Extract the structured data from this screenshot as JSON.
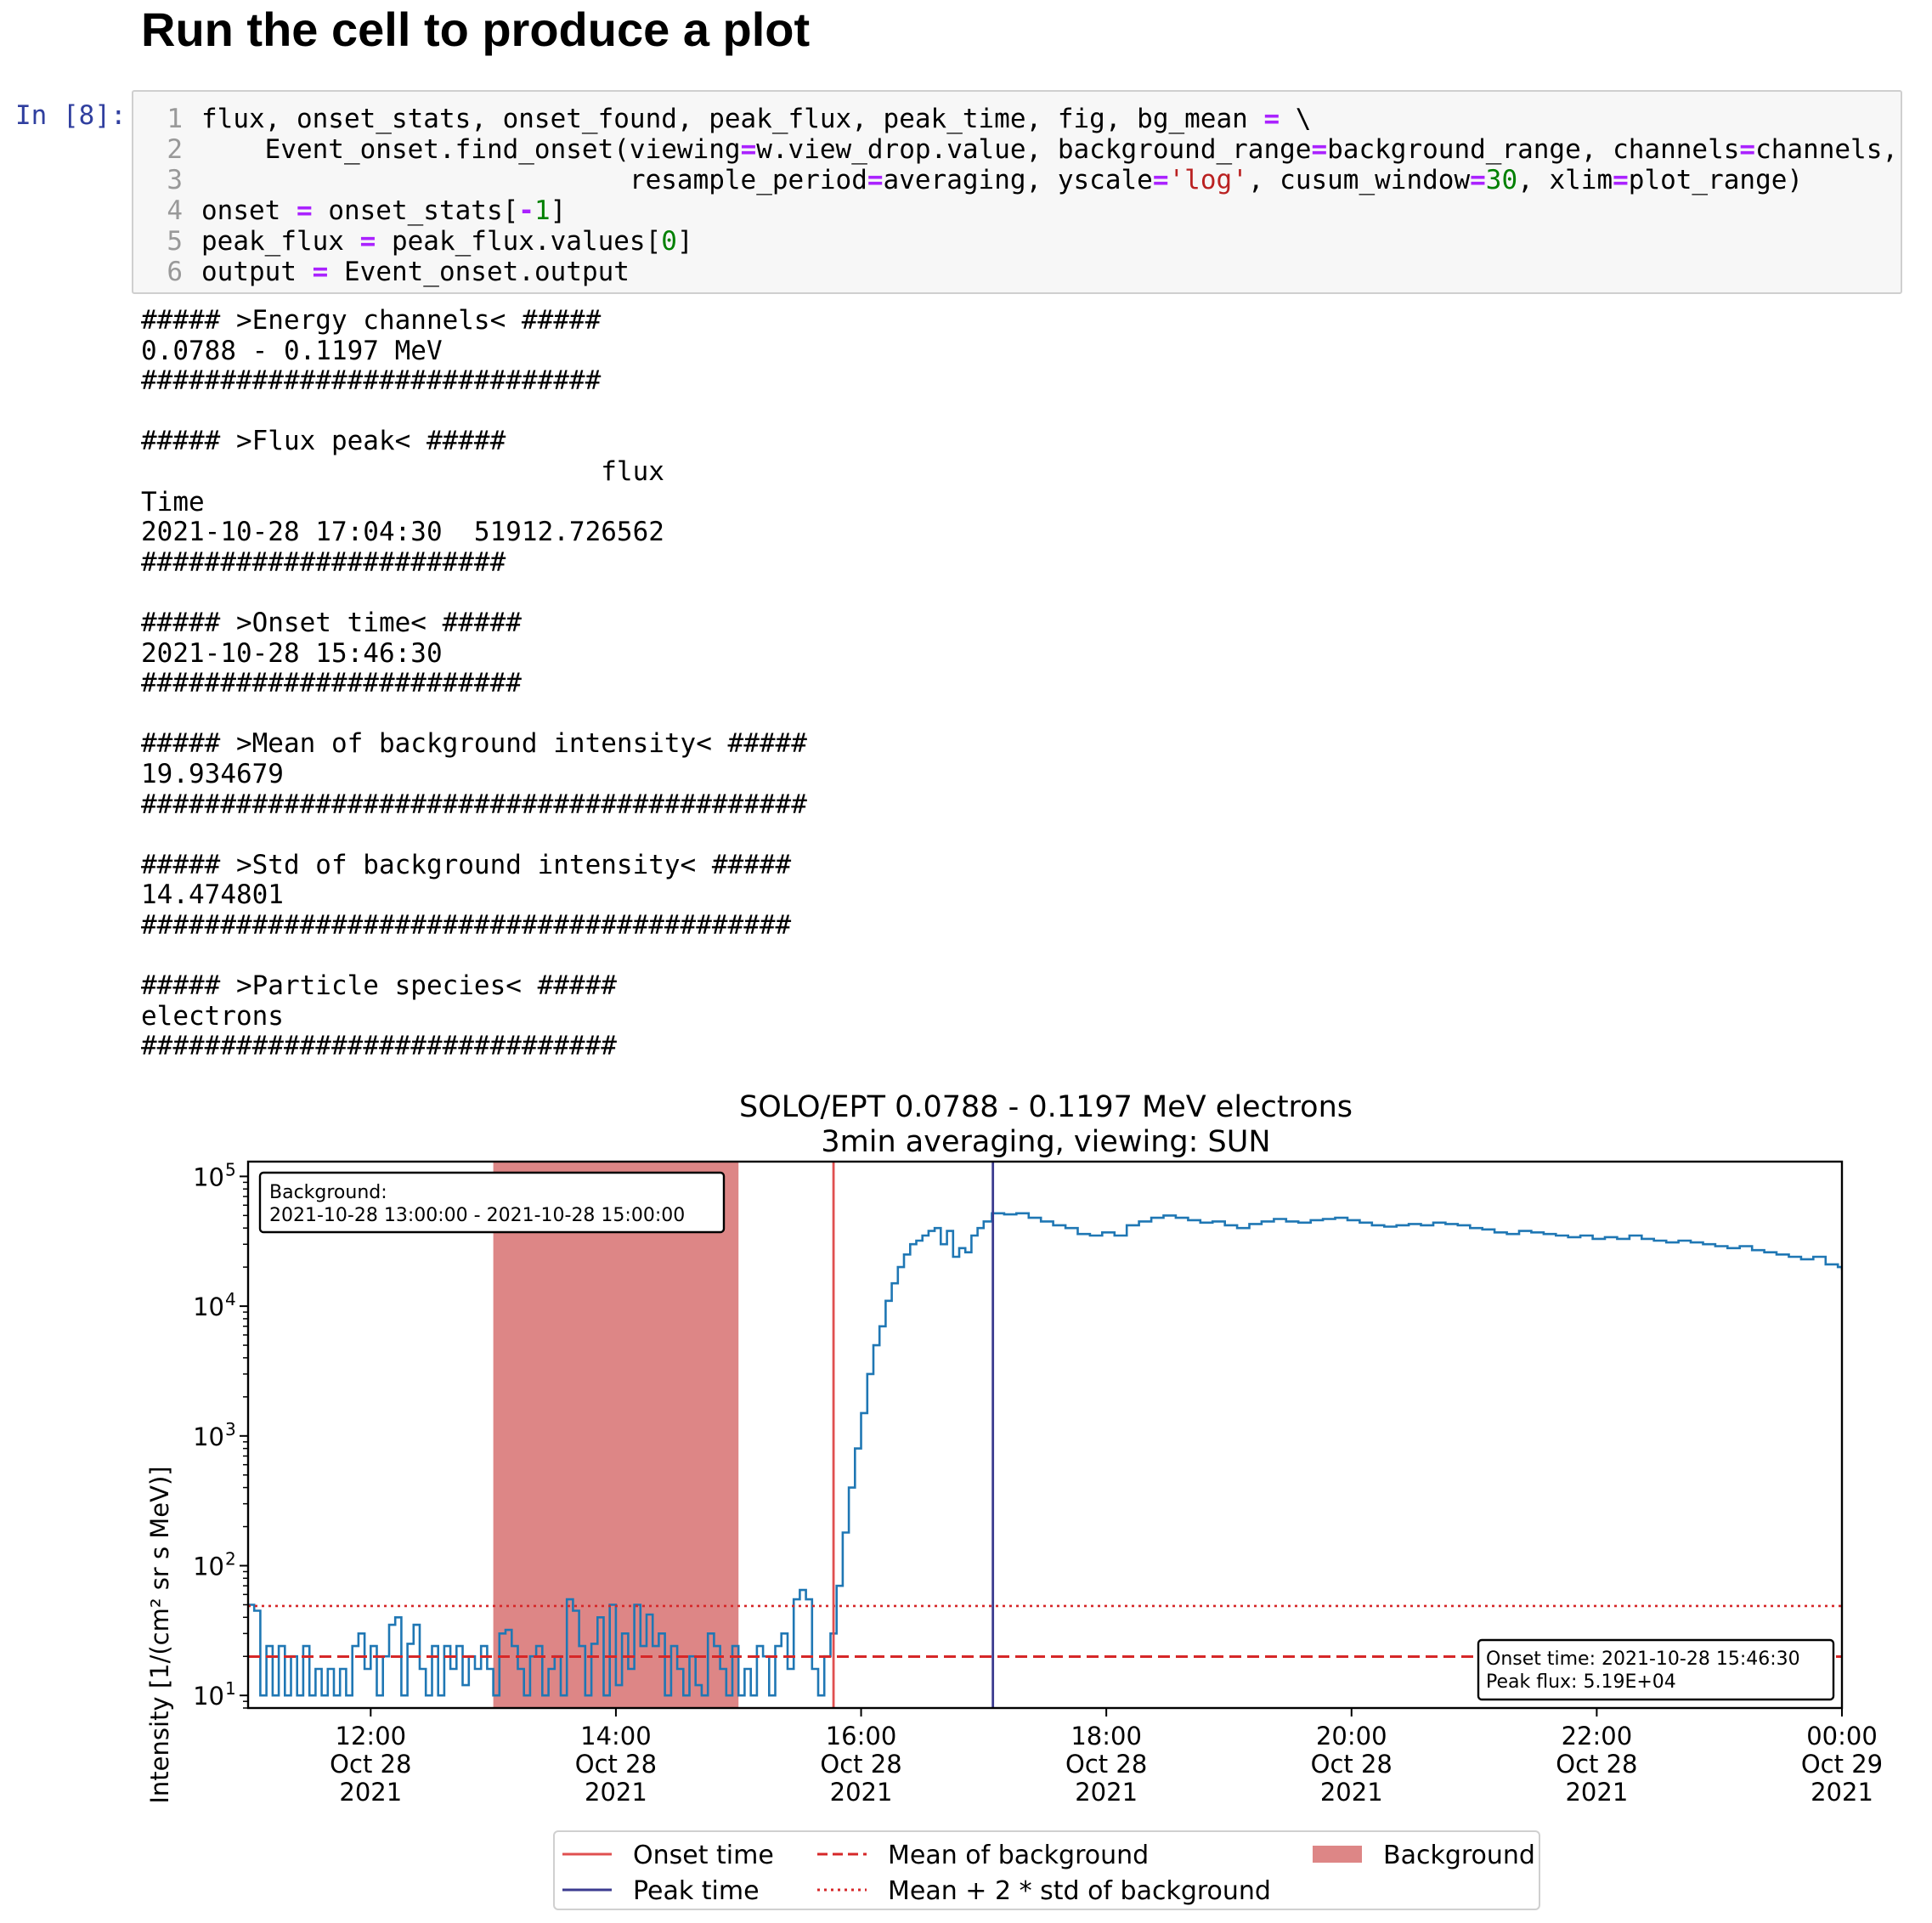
{
  "heading": "Run the cell to produce a plot",
  "cell": {
    "prompt": "In [8]:",
    "lines": [
      {
        "n": "1",
        "text": "flux, onset_stats, onset_found, peak_flux, peak_time, fig, bg_mean = \\"
      },
      {
        "n": "2",
        "text": "    Event_onset.find_onset(viewing=w.view_drop.value, background_range=background_range, channels=channels,"
      },
      {
        "n": "3",
        "text": "                           resample_period=averaging, yscale='log', cusum_window=30, xlim=plot_range)"
      },
      {
        "n": "4",
        "text": "onset = onset_stats[-1]"
      },
      {
        "n": "5",
        "text": "peak_flux = peak_flux.values[0]"
      },
      {
        "n": "6",
        "text": "output = Event_onset.output"
      }
    ]
  },
  "output_lines": [
    "##### >Energy channels< #####",
    "0.0788 - 0.1197 MeV",
    "#############################",
    "",
    "##### >Flux peak< #####",
    "                             flux",
    "Time",
    "2021-10-28 17:04:30  51912.726562",
    "#######################",
    "",
    "##### >Onset time< #####",
    "2021-10-28 15:46:30",
    "########################",
    "",
    "##### >Mean of background intensity< #####",
    "19.934679",
    "##########################################",
    "",
    "##### >Std of background intensity< #####",
    "14.474801",
    "#########################################",
    "",
    "##### >Particle species< #####",
    "electrons",
    "##############################"
  ],
  "chart_data": {
    "type": "line",
    "title": "SOLO/EPT 0.0788 - 0.1197 MeV electrons",
    "subtitle": "3min averaging, viewing: SUN",
    "ylabel": "Intensity [1/(cm² sr s MeV)]",
    "xlabel": "",
    "yscale": "log",
    "ylim": [
      8,
      130000
    ],
    "xlim": [
      "2021-10-28 11:00",
      "2021-10-29 00:00"
    ],
    "x_ticks": [
      {
        "time": "12:00",
        "line1": "12:00",
        "line2": "Oct 28",
        "line3": "2021"
      },
      {
        "time": "14:00",
        "line1": "14:00",
        "line2": "Oct 28",
        "line3": "2021"
      },
      {
        "time": "16:00",
        "line1": "16:00",
        "line2": "Oct 28",
        "line3": "2021"
      },
      {
        "time": "18:00",
        "line1": "18:00",
        "line2": "Oct 28",
        "line3": "2021"
      },
      {
        "time": "20:00",
        "line1": "20:00",
        "line2": "Oct 28",
        "line3": "2021"
      },
      {
        "time": "22:00",
        "line1": "22:00",
        "line2": "Oct 28",
        "line3": "2021"
      },
      {
        "time": "24:00",
        "line1": "00:00",
        "line2": "Oct 29",
        "line3": "2021"
      }
    ],
    "y_ticks": [
      {
        "value": 10,
        "mantissa": "10",
        "exp": "1"
      },
      {
        "value": 100,
        "mantissa": "10",
        "exp": "2"
      },
      {
        "value": 1000,
        "mantissa": "10",
        "exp": "3"
      },
      {
        "value": 10000,
        "mantissa": "10",
        "exp": "4"
      },
      {
        "value": 100000,
        "mantissa": "10",
        "exp": "5"
      }
    ],
    "background_span": {
      "start": "13:00",
      "end": "15:00"
    },
    "onset_time": "15:46:30",
    "peak_time": "17:04:30",
    "mean_background": 19.934679,
    "mean_plus_2std": 48.884281,
    "series": [
      {
        "name": "flux",
        "points": [
          [
            "11:00",
            50
          ],
          [
            "11:03",
            45
          ],
          [
            "11:06",
            10
          ],
          [
            "11:09",
            24
          ],
          [
            "11:12",
            10
          ],
          [
            "11:15",
            24
          ],
          [
            "11:18",
            10
          ],
          [
            "11:21",
            20
          ],
          [
            "11:24",
            10
          ],
          [
            "11:27",
            24
          ],
          [
            "11:30",
            10
          ],
          [
            "11:33",
            16
          ],
          [
            "11:36",
            10
          ],
          [
            "11:39",
            16
          ],
          [
            "11:42",
            10
          ],
          [
            "11:45",
            16
          ],
          [
            "11:48",
            10
          ],
          [
            "11:51",
            24
          ],
          [
            "11:54",
            30
          ],
          [
            "11:57",
            16
          ],
          [
            "12:00",
            24
          ],
          [
            "12:03",
            10
          ],
          [
            "12:06",
            20
          ],
          [
            "12:09",
            35
          ],
          [
            "12:12",
            40
          ],
          [
            "12:15",
            10
          ],
          [
            "12:18",
            25
          ],
          [
            "12:21",
            35
          ],
          [
            "12:24",
            16
          ],
          [
            "12:27",
            10
          ],
          [
            "12:30",
            24
          ],
          [
            "12:33",
            10
          ],
          [
            "12:36",
            24
          ],
          [
            "12:39",
            16
          ],
          [
            "12:42",
            24
          ],
          [
            "12:45",
            12
          ],
          [
            "12:48",
            20
          ],
          [
            "12:51",
            16
          ],
          [
            "12:54",
            24
          ],
          [
            "12:57",
            16
          ],
          [
            "13:00",
            10
          ],
          [
            "13:03",
            30
          ],
          [
            "13:06",
            32
          ],
          [
            "13:09",
            24
          ],
          [
            "13:12",
            16
          ],
          [
            "13:15",
            10
          ],
          [
            "13:18",
            20
          ],
          [
            "13:21",
            24
          ],
          [
            "13:24",
            10
          ],
          [
            "13:27",
            16
          ],
          [
            "13:30",
            20
          ],
          [
            "13:33",
            10
          ],
          [
            "13:36",
            55
          ],
          [
            "13:39",
            45
          ],
          [
            "13:42",
            24
          ],
          [
            "13:45",
            10
          ],
          [
            "13:48",
            25
          ],
          [
            "13:51",
            40
          ],
          [
            "13:54",
            10
          ],
          [
            "13:57",
            50
          ],
          [
            "14:00",
            12
          ],
          [
            "14:03",
            30
          ],
          [
            "14:06",
            16
          ],
          [
            "14:09",
            50
          ],
          [
            "14:12",
            24
          ],
          [
            "14:15",
            42
          ],
          [
            "14:18",
            24
          ],
          [
            "14:21",
            30
          ],
          [
            "14:24",
            10
          ],
          [
            "14:27",
            24
          ],
          [
            "14:30",
            16
          ],
          [
            "14:33",
            10
          ],
          [
            "14:36",
            20
          ],
          [
            "14:39",
            12
          ],
          [
            "14:42",
            10
          ],
          [
            "14:45",
            30
          ],
          [
            "14:48",
            24
          ],
          [
            "14:51",
            16
          ],
          [
            "14:54",
            10
          ],
          [
            "14:57",
            24
          ],
          [
            "15:00",
            10
          ],
          [
            "15:03",
            16
          ],
          [
            "15:06",
            10
          ],
          [
            "15:09",
            24
          ],
          [
            "15:12",
            20
          ],
          [
            "15:15",
            10
          ],
          [
            "15:18",
            24
          ],
          [
            "15:21",
            30
          ],
          [
            "15:24",
            16
          ],
          [
            "15:27",
            55
          ],
          [
            "15:30",
            65
          ],
          [
            "15:33",
            55
          ],
          [
            "15:36",
            16
          ],
          [
            "15:39",
            10
          ],
          [
            "15:42",
            20
          ],
          [
            "15:45",
            30
          ],
          [
            "15:48",
            70
          ],
          [
            "15:51",
            180
          ],
          [
            "15:54",
            400
          ],
          [
            "15:57",
            800
          ],
          [
            "16:00",
            1500
          ],
          [
            "16:03",
            3000
          ],
          [
            "16:06",
            5000
          ],
          [
            "16:09",
            7000
          ],
          [
            "16:12",
            11000
          ],
          [
            "16:15",
            15000
          ],
          [
            "16:18",
            20000
          ],
          [
            "16:21",
            25000
          ],
          [
            "16:24",
            30000
          ],
          [
            "16:27",
            32000
          ],
          [
            "16:30",
            35000
          ],
          [
            "16:33",
            38000
          ],
          [
            "16:36",
            40000
          ],
          [
            "16:39",
            30000
          ],
          [
            "16:42",
            38000
          ],
          [
            "16:45",
            24000
          ],
          [
            "16:48",
            28000
          ],
          [
            "16:51",
            26000
          ],
          [
            "16:54",
            35000
          ],
          [
            "16:57",
            40000
          ],
          [
            "17:00",
            45000
          ],
          [
            "17:04",
            52000
          ],
          [
            "17:10",
            51000
          ],
          [
            "17:16",
            52000
          ],
          [
            "17:22",
            48000
          ],
          [
            "17:28",
            45000
          ],
          [
            "17:34",
            42000
          ],
          [
            "17:40",
            40000
          ],
          [
            "17:46",
            36000
          ],
          [
            "17:52",
            35000
          ],
          [
            "17:58",
            37000
          ],
          [
            "18:04",
            35000
          ],
          [
            "18:10",
            42000
          ],
          [
            "18:16",
            45000
          ],
          [
            "18:22",
            48000
          ],
          [
            "18:28",
            50000
          ],
          [
            "18:34",
            48000
          ],
          [
            "18:40",
            46000
          ],
          [
            "18:46",
            44000
          ],
          [
            "18:52",
            45000
          ],
          [
            "18:58",
            42000
          ],
          [
            "19:04",
            40000
          ],
          [
            "19:10",
            43000
          ],
          [
            "19:16",
            45000
          ],
          [
            "19:22",
            47000
          ],
          [
            "19:28",
            45000
          ],
          [
            "19:34",
            44000
          ],
          [
            "19:40",
            46000
          ],
          [
            "19:46",
            47000
          ],
          [
            "19:52",
            48000
          ],
          [
            "19:58",
            46000
          ],
          [
            "20:04",
            44000
          ],
          [
            "20:10",
            42000
          ],
          [
            "20:16",
            41000
          ],
          [
            "20:22",
            42000
          ],
          [
            "20:28",
            43000
          ],
          [
            "20:34",
            42000
          ],
          [
            "20:40",
            44000
          ],
          [
            "20:46",
            43000
          ],
          [
            "20:52",
            42000
          ],
          [
            "20:58",
            40000
          ],
          [
            "21:04",
            39000
          ],
          [
            "21:10",
            37000
          ],
          [
            "21:16",
            36000
          ],
          [
            "21:22",
            38000
          ],
          [
            "21:28",
            37000
          ],
          [
            "21:34",
            36000
          ],
          [
            "21:40",
            35000
          ],
          [
            "21:46",
            34000
          ],
          [
            "21:52",
            35000
          ],
          [
            "21:58",
            33000
          ],
          [
            "22:04",
            34000
          ],
          [
            "22:10",
            33000
          ],
          [
            "22:16",
            35000
          ],
          [
            "22:22",
            33000
          ],
          [
            "22:28",
            32000
          ],
          [
            "22:34",
            31000
          ],
          [
            "22:40",
            32000
          ],
          [
            "22:46",
            31000
          ],
          [
            "22:52",
            30000
          ],
          [
            "22:58",
            29000
          ],
          [
            "23:04",
            28000
          ],
          [
            "23:10",
            29000
          ],
          [
            "23:16",
            27000
          ],
          [
            "23:22",
            26000
          ],
          [
            "23:28",
            25000
          ],
          [
            "23:34",
            24000
          ],
          [
            "23:40",
            23000
          ],
          [
            "23:46",
            24000
          ],
          [
            "23:52",
            21000
          ],
          [
            "23:58",
            20000
          ],
          [
            "24:00",
            19000
          ]
        ]
      }
    ],
    "annotations": {
      "background_box": {
        "line1": "Background:",
        "line2": "2021-10-28 13:00:00 - 2021-10-28 15:00:00"
      },
      "onset_box": {
        "line1": "Onset time: 2021-10-28 15:46:30",
        "line2": "Peak flux: 5.19E+04"
      }
    },
    "legend": {
      "placement": "bottom-center",
      "entries": [
        {
          "label": "Onset time",
          "style": "solid",
          "color": "#e05050"
        },
        {
          "label": "Peak time",
          "style": "solid",
          "color": "#3b3b8f"
        },
        {
          "label": "Mean of background",
          "style": "dashed",
          "color": "#d62728"
        },
        {
          "label": "Mean + 2 * std of background",
          "style": "dotted",
          "color": "#d62728"
        },
        {
          "label": "Background",
          "style": "patch",
          "color": "#dd8686"
        }
      ]
    },
    "colors": {
      "series": "#1f77b4",
      "onset": "#e05050",
      "peak": "#3b3b8f",
      "mean": "#d62728",
      "background": "#dd8686"
    }
  }
}
